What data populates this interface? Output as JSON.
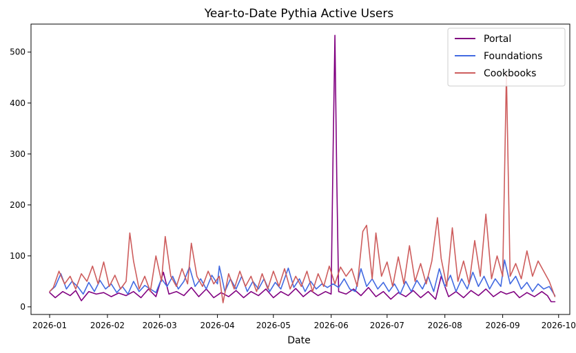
{
  "chart_data": {
    "type": "line",
    "title": "Year-to-Date Pythia Active Users",
    "xlabel": "Date",
    "ylabel": "",
    "x_range": [
      "2025-12-22",
      "2026-10-07"
    ],
    "ylim": [
      -15,
      555
    ],
    "x_ticks": [
      "2026-01",
      "2026-02",
      "2026-03",
      "2026-04",
      "2026-05",
      "2026-06",
      "2026-07",
      "2026-08",
      "2026-09",
      "2026-10"
    ],
    "y_ticks": [
      0,
      100,
      200,
      300,
      400,
      500
    ],
    "grid": false,
    "legend": {
      "position": "top-right"
    },
    "series": [
      {
        "name": "Portal",
        "color": "#800080",
        "points": [
          [
            "2026-01-01",
            28
          ],
          [
            "2026-01-04",
            18
          ],
          [
            "2026-01-08",
            30
          ],
          [
            "2026-01-12",
            22
          ],
          [
            "2026-01-15",
            32
          ],
          [
            "2026-01-18",
            12
          ],
          [
            "2026-01-22",
            30
          ],
          [
            "2026-01-26",
            25
          ],
          [
            "2026-01-30",
            28
          ],
          [
            "2026-02-03",
            20
          ],
          [
            "2026-02-07",
            27
          ],
          [
            "2026-02-11",
            22
          ],
          [
            "2026-02-15",
            30
          ],
          [
            "2026-02-19",
            18
          ],
          [
            "2026-02-23",
            35
          ],
          [
            "2026-02-27",
            20
          ],
          [
            "2026-03-03",
            68
          ],
          [
            "2026-03-06",
            25
          ],
          [
            "2026-03-10",
            30
          ],
          [
            "2026-03-14",
            22
          ],
          [
            "2026-03-18",
            38
          ],
          [
            "2026-03-22",
            20
          ],
          [
            "2026-03-26",
            35
          ],
          [
            "2026-03-30",
            18
          ],
          [
            "2026-04-03",
            28
          ],
          [
            "2026-04-07",
            20
          ],
          [
            "2026-04-11",
            32
          ],
          [
            "2026-04-15",
            18
          ],
          [
            "2026-04-19",
            30
          ],
          [
            "2026-04-23",
            22
          ],
          [
            "2026-04-27",
            35
          ],
          [
            "2026-05-01",
            18
          ],
          [
            "2026-05-05",
            30
          ],
          [
            "2026-05-09",
            22
          ],
          [
            "2026-05-13",
            36
          ],
          [
            "2026-05-17",
            20
          ],
          [
            "2026-05-21",
            32
          ],
          [
            "2026-05-25",
            22
          ],
          [
            "2026-05-29",
            30
          ],
          [
            "2026-06-01",
            25
          ],
          [
            "2026-06-02",
            300
          ],
          [
            "2026-06-03",
            533
          ],
          [
            "2026-06-04",
            250
          ],
          [
            "2026-06-05",
            30
          ],
          [
            "2026-06-09",
            25
          ],
          [
            "2026-06-13",
            35
          ],
          [
            "2026-06-17",
            22
          ],
          [
            "2026-06-21",
            38
          ],
          [
            "2026-06-25",
            20
          ],
          [
            "2026-06-29",
            30
          ],
          [
            "2026-07-03",
            15
          ],
          [
            "2026-07-07",
            28
          ],
          [
            "2026-07-11",
            20
          ],
          [
            "2026-07-15",
            32
          ],
          [
            "2026-07-19",
            18
          ],
          [
            "2026-07-23",
            30
          ],
          [
            "2026-07-27",
            15
          ],
          [
            "2026-07-30",
            60
          ],
          [
            "2026-08-03",
            20
          ],
          [
            "2026-08-07",
            30
          ],
          [
            "2026-08-11",
            18
          ],
          [
            "2026-08-15",
            32
          ],
          [
            "2026-08-19",
            22
          ],
          [
            "2026-08-23",
            35
          ],
          [
            "2026-08-27",
            20
          ],
          [
            "2026-08-31",
            30
          ],
          [
            "2026-09-03",
            25
          ],
          [
            "2026-09-07",
            30
          ],
          [
            "2026-09-10",
            18
          ],
          [
            "2026-09-14",
            28
          ],
          [
            "2026-09-18",
            20
          ],
          [
            "2026-09-22",
            30
          ],
          [
            "2026-09-25",
            22
          ],
          [
            "2026-09-27",
            10
          ],
          [
            "2026-09-29",
            10
          ]
        ]
      },
      {
        "name": "Foundations",
        "color": "#4169e1",
        "points": [
          [
            "2026-01-01",
            30
          ],
          [
            "2026-01-04",
            40
          ],
          [
            "2026-01-07",
            65
          ],
          [
            "2026-01-10",
            35
          ],
          [
            "2026-01-13",
            50
          ],
          [
            "2026-01-16",
            40
          ],
          [
            "2026-01-19",
            25
          ],
          [
            "2026-01-22",
            48
          ],
          [
            "2026-01-25",
            30
          ],
          [
            "2026-01-28",
            52
          ],
          [
            "2026-01-31",
            35
          ],
          [
            "2026-02-03",
            45
          ],
          [
            "2026-02-06",
            28
          ],
          [
            "2026-02-09",
            40
          ],
          [
            "2026-02-12",
            25
          ],
          [
            "2026-02-15",
            50
          ],
          [
            "2026-02-18",
            30
          ],
          [
            "2026-02-21",
            42
          ],
          [
            "2026-02-24",
            35
          ],
          [
            "2026-02-27",
            28
          ],
          [
            "2026-03-02",
            55
          ],
          [
            "2026-03-05",
            40
          ],
          [
            "2026-03-08",
            60
          ],
          [
            "2026-03-11",
            35
          ],
          [
            "2026-03-14",
            50
          ],
          [
            "2026-03-17",
            78
          ],
          [
            "2026-03-20",
            40
          ],
          [
            "2026-03-23",
            55
          ],
          [
            "2026-03-26",
            35
          ],
          [
            "2026-03-29",
            62
          ],
          [
            "2026-04-01",
            45
          ],
          [
            "2026-04-02",
            80
          ],
          [
            "2026-04-05",
            30
          ],
          [
            "2026-04-08",
            55
          ],
          [
            "2026-04-11",
            35
          ],
          [
            "2026-04-14",
            60
          ],
          [
            "2026-04-17",
            30
          ],
          [
            "2026-04-20",
            50
          ],
          [
            "2026-04-23",
            35
          ],
          [
            "2026-04-26",
            55
          ],
          [
            "2026-04-29",
            30
          ],
          [
            "2026-05-02",
            48
          ],
          [
            "2026-05-05",
            35
          ],
          [
            "2026-05-09",
            76
          ],
          [
            "2026-05-12",
            38
          ],
          [
            "2026-05-15",
            55
          ],
          [
            "2026-05-18",
            30
          ],
          [
            "2026-05-21",
            50
          ],
          [
            "2026-05-24",
            35
          ],
          [
            "2026-05-27",
            45
          ],
          [
            "2026-05-30",
            38
          ],
          [
            "2026-06-02",
            45
          ],
          [
            "2026-06-05",
            38
          ],
          [
            "2026-06-08",
            55
          ],
          [
            "2026-06-11",
            35
          ],
          [
            "2026-06-14",
            30
          ],
          [
            "2026-06-17",
            75
          ],
          [
            "2026-06-20",
            40
          ],
          [
            "2026-06-23",
            55
          ],
          [
            "2026-06-26",
            35
          ],
          [
            "2026-06-29",
            48
          ],
          [
            "2026-07-02",
            30
          ],
          [
            "2026-07-05",
            45
          ],
          [
            "2026-07-08",
            25
          ],
          [
            "2026-07-11",
            50
          ],
          [
            "2026-07-14",
            30
          ],
          [
            "2026-07-17",
            52
          ],
          [
            "2026-07-20",
            35
          ],
          [
            "2026-07-23",
            60
          ],
          [
            "2026-07-26",
            30
          ],
          [
            "2026-07-29",
            75
          ],
          [
            "2026-08-01",
            40
          ],
          [
            "2026-08-04",
            62
          ],
          [
            "2026-08-07",
            30
          ],
          [
            "2026-08-10",
            55
          ],
          [
            "2026-08-13",
            35
          ],
          [
            "2026-08-16",
            68
          ],
          [
            "2026-08-19",
            40
          ],
          [
            "2026-08-22",
            60
          ],
          [
            "2026-08-25",
            35
          ],
          [
            "2026-08-28",
            55
          ],
          [
            "2026-08-31",
            40
          ],
          [
            "2026-09-02",
            92
          ],
          [
            "2026-09-05",
            45
          ],
          [
            "2026-09-08",
            60
          ],
          [
            "2026-09-11",
            35
          ],
          [
            "2026-09-14",
            48
          ],
          [
            "2026-09-17",
            30
          ],
          [
            "2026-09-20",
            45
          ],
          [
            "2026-09-23",
            35
          ],
          [
            "2026-09-26",
            40
          ],
          [
            "2026-09-29",
            22
          ]
        ]
      },
      {
        "name": "Cookbooks",
        "color": "#cd5c5c",
        "points": [
          [
            "2026-01-01",
            30
          ],
          [
            "2026-01-03",
            38
          ],
          [
            "2026-01-06",
            70
          ],
          [
            "2026-01-09",
            45
          ],
          [
            "2026-01-12",
            60
          ],
          [
            "2026-01-15",
            35
          ],
          [
            "2026-01-18",
            65
          ],
          [
            "2026-01-21",
            50
          ],
          [
            "2026-01-24",
            80
          ],
          [
            "2026-01-27",
            45
          ],
          [
            "2026-01-30",
            88
          ],
          [
            "2026-02-02",
            40
          ],
          [
            "2026-02-05",
            62
          ],
          [
            "2026-02-08",
            35
          ],
          [
            "2026-02-11",
            50
          ],
          [
            "2026-02-13",
            145
          ],
          [
            "2026-02-15",
            90
          ],
          [
            "2026-02-18",
            35
          ],
          [
            "2026-02-21",
            60
          ],
          [
            "2026-02-24",
            30
          ],
          [
            "2026-02-27",
            100
          ],
          [
            "2026-03-02",
            50
          ],
          [
            "2026-03-04",
            138
          ],
          [
            "2026-03-07",
            60
          ],
          [
            "2026-03-10",
            40
          ],
          [
            "2026-03-13",
            75
          ],
          [
            "2026-03-16",
            45
          ],
          [
            "2026-03-18",
            125
          ],
          [
            "2026-03-21",
            60
          ],
          [
            "2026-03-24",
            40
          ],
          [
            "2026-03-27",
            70
          ],
          [
            "2026-03-30",
            45
          ],
          [
            "2026-04-02",
            60
          ],
          [
            "2026-04-04",
            8
          ],
          [
            "2026-04-07",
            65
          ],
          [
            "2026-04-10",
            35
          ],
          [
            "2026-04-13",
            70
          ],
          [
            "2026-04-16",
            40
          ],
          [
            "2026-04-19",
            60
          ],
          [
            "2026-04-22",
            30
          ],
          [
            "2026-04-25",
            65
          ],
          [
            "2026-04-28",
            35
          ],
          [
            "2026-05-01",
            70
          ],
          [
            "2026-05-04",
            40
          ],
          [
            "2026-05-07",
            75
          ],
          [
            "2026-05-10",
            35
          ],
          [
            "2026-05-13",
            60
          ],
          [
            "2026-05-16",
            40
          ],
          [
            "2026-05-19",
            70
          ],
          [
            "2026-05-22",
            30
          ],
          [
            "2026-05-25",
            65
          ],
          [
            "2026-05-28",
            40
          ],
          [
            "2026-05-31",
            80
          ],
          [
            "2026-06-03",
            45
          ],
          [
            "2026-06-06",
            78
          ],
          [
            "2026-06-09",
            60
          ],
          [
            "2026-06-12",
            75
          ],
          [
            "2026-06-15",
            40
          ],
          [
            "2026-06-18",
            148
          ],
          [
            "2026-06-20",
            160
          ],
          [
            "2026-06-23",
            55
          ],
          [
            "2026-06-25",
            145
          ],
          [
            "2026-06-28",
            60
          ],
          [
            "2026-07-01",
            88
          ],
          [
            "2026-07-04",
            40
          ],
          [
            "2026-07-07",
            98
          ],
          [
            "2026-07-10",
            45
          ],
          [
            "2026-07-13",
            120
          ],
          [
            "2026-07-16",
            50
          ],
          [
            "2026-07-19",
            85
          ],
          [
            "2026-07-22",
            45
          ],
          [
            "2026-07-25",
            90
          ],
          [
            "2026-07-28",
            175
          ],
          [
            "2026-07-30",
            95
          ],
          [
            "2026-08-02",
            40
          ],
          [
            "2026-08-05",
            155
          ],
          [
            "2026-08-08",
            50
          ],
          [
            "2026-08-11",
            90
          ],
          [
            "2026-08-14",
            45
          ],
          [
            "2026-08-17",
            130
          ],
          [
            "2026-08-20",
            60
          ],
          [
            "2026-08-23",
            182
          ],
          [
            "2026-08-26",
            55
          ],
          [
            "2026-08-29",
            100
          ],
          [
            "2026-09-01",
            60
          ],
          [
            "2026-09-03",
            460
          ],
          [
            "2026-09-05",
            60
          ],
          [
            "2026-09-08",
            85
          ],
          [
            "2026-09-11",
            55
          ],
          [
            "2026-09-14",
            110
          ],
          [
            "2026-09-17",
            60
          ],
          [
            "2026-09-20",
            90
          ],
          [
            "2026-09-23",
            70
          ],
          [
            "2026-09-26",
            50
          ],
          [
            "2026-09-29",
            20
          ]
        ]
      }
    ]
  }
}
